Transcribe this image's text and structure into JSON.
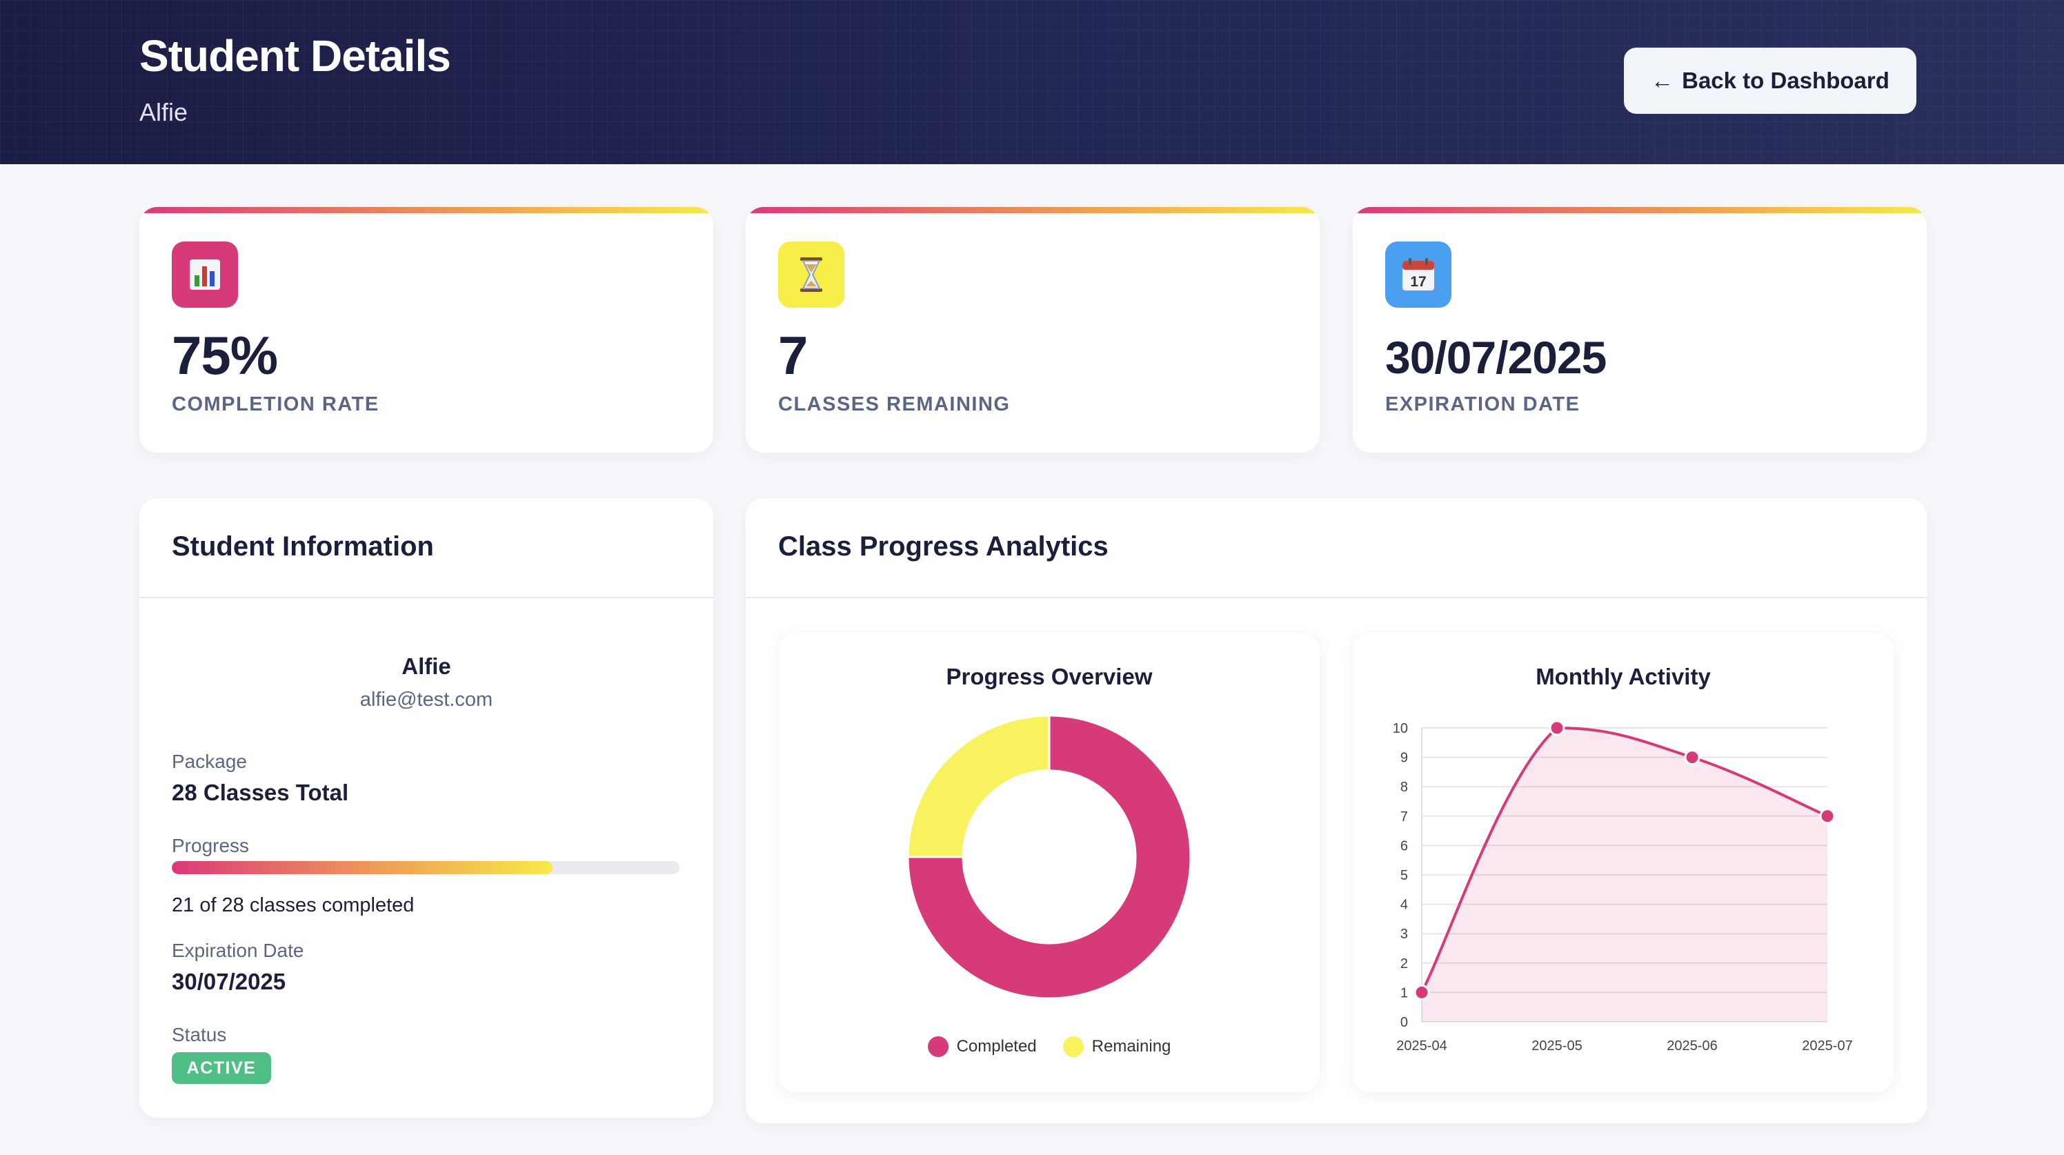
{
  "header": {
    "title": "Student Details",
    "subtitle": "Alfie",
    "back_button": {
      "arrow": "←",
      "label": "Back to Dashboard"
    }
  },
  "stats": [
    {
      "icon": "bar-chart-icon",
      "icon_bg": "#d63a78",
      "value": "75%",
      "label": "COMPLETION RATE"
    },
    {
      "icon": "hourglass-icon",
      "icon_bg": "#f7ee4a",
      "value": "7",
      "label": "CLASSES REMAINING"
    },
    {
      "icon": "calendar-icon",
      "icon_bg": "#4b9ff0",
      "icon_text": "17",
      "value": "30/07/2025",
      "label": "EXPIRATION DATE"
    }
  ],
  "student_info": {
    "title": "Student Information",
    "name": "Alfie",
    "email": "alfie@test.com",
    "package_label": "Package",
    "package_value": "28 Classes Total",
    "progress_label": "Progress",
    "progress_fraction": 0.75,
    "progress_text": "21 of 28 classes completed",
    "expiration_label": "Expiration Date",
    "expiration_value": "30/07/2025",
    "status_label": "Status",
    "status_value": "ACTIVE"
  },
  "analytics": {
    "title": "Class Progress Analytics"
  },
  "colors": {
    "accent": "#d63a78",
    "yellow": "#f7f05a",
    "active": "#4fbf86"
  },
  "chart_data": [
    {
      "type": "pie",
      "title": "Progress Overview",
      "categories": [
        "Completed",
        "Remaining"
      ],
      "values": [
        21,
        7
      ],
      "colors": [
        "#d63a78",
        "#f8f25e"
      ],
      "legend": "bottom"
    },
    {
      "type": "area",
      "title": "Monthly Activity",
      "x": [
        "2025-04",
        "2025-05",
        "2025-06",
        "2025-07"
      ],
      "series": [
        {
          "values": [
            1,
            10,
            9,
            7
          ]
        }
      ],
      "ylim": [
        0,
        10
      ],
      "yticks": [
        "0",
        "1",
        "2",
        "3",
        "4",
        "5",
        "6",
        "7",
        "8",
        "9",
        "10"
      ],
      "grid": true,
      "color": "#d63a78"
    }
  ]
}
